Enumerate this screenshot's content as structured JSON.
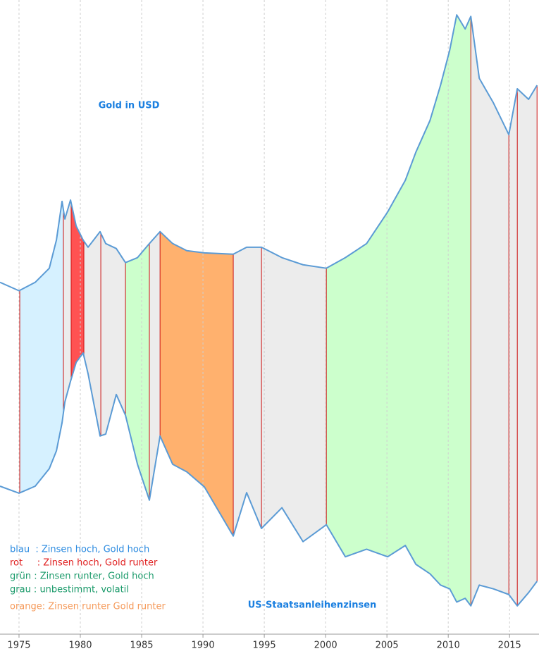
{
  "chart_data": {
    "type": "line",
    "x": [
      1973.45,
      1975.0,
      1976.32,
      1977.47,
      1978.05,
      1978.51,
      1978.74,
      1979.2,
      1979.66,
      1980.23,
      1980.63,
      1981.61,
      1982.07,
      1982.93,
      1983.68,
      1984.66,
      1985.63,
      1986.5,
      1987.53,
      1988.68,
      1990.12,
      1992.47,
      1993.56,
      1994.77,
      1996.44,
      1998.16,
      2000.06,
      2001.61,
      2003.34,
      2005.06,
      2006.5,
      2007.36,
      2008.51,
      2009.37,
      2010.12,
      2010.69,
      2011.38,
      2011.84,
      2012.53,
      2013.68,
      2014.94,
      2015.63,
      2016.55,
      2017.24
    ],
    "series": [
      {
        "name": "Gold in USD",
        "color": "#5b9bd5",
        "values": [
          185,
          134,
          185,
          270,
          440,
          674,
          567,
          682,
          525,
          440,
          397,
          491,
          419,
          389,
          304,
          334,
          419,
          491,
          419,
          376,
          363,
          355,
          397,
          397,
          334,
          291,
          270,
          334,
          419,
          610,
          801,
          971,
          1162,
          1375,
          1587,
          1800,
          1715,
          1791,
          1417,
          1269,
          1077,
          1354,
          1290,
          1375
        ]
      },
      {
        "name": "US-Staatsanleihenzinsen",
        "color": "#5b9bd5",
        "axis": "y2",
        "values": [
          7.84,
          7.47,
          7.84,
          8.77,
          9.71,
          11.2,
          12.3,
          13.4,
          14.4,
          14.9,
          13.8,
          10.5,
          10.6,
          12.7,
          11.6,
          9.0,
          7.1,
          10.5,
          9.0,
          8.6,
          7.8,
          5.2,
          7.5,
          5.6,
          6.7,
          4.9,
          5.8,
          4.1,
          4.5,
          4.1,
          4.7,
          3.7,
          3.2,
          2.6,
          2.4,
          1.7,
          1.9,
          1.5,
          2.6,
          2.4,
          2.1,
          1.5,
          2.2,
          2.8
        ]
      }
    ],
    "xlim": [
      1973.45,
      2017.4
    ],
    "xticks": [
      1975,
      1980,
      1985,
      1990,
      1995,
      2000,
      2005,
      2010,
      2015
    ],
    "ylim": [
      -1940,
      1890
    ],
    "y2lim": [
      0,
      33.6
    ],
    "grid": true,
    "regions": [
      {
        "start": 1975.06,
        "end": 1978.62,
        "color": "#d6f1ff"
      },
      {
        "start": 1978.62,
        "end": 1979.25,
        "color": "#ececec"
      },
      {
        "start": 1979.25,
        "end": 1980.29,
        "color": "#ff5252"
      },
      {
        "start": 1980.29,
        "end": 1981.67,
        "color": "#ececec"
      },
      {
        "start": 1981.67,
        "end": 1983.68,
        "color": "#ececec"
      },
      {
        "start": 1983.68,
        "end": 1985.63,
        "color": "#ccffcc"
      },
      {
        "start": 1985.63,
        "end": 1986.5,
        "color": "#ececec"
      },
      {
        "start": 1986.5,
        "end": 1992.47,
        "color": "#ffb16e"
      },
      {
        "start": 1992.47,
        "end": 1994.77,
        "color": "#ececec"
      },
      {
        "start": 1994.77,
        "end": 2000.06,
        "color": "#ececec"
      },
      {
        "start": 2000.06,
        "end": 2011.84,
        "color": "#ccffcc"
      },
      {
        "start": 2011.84,
        "end": 2014.94,
        "color": "#ececec"
      },
      {
        "start": 2014.94,
        "end": 2015.63,
        "color": "#ececec"
      },
      {
        "start": 2015.63,
        "end": 2017.24,
        "color": "#ececec"
      }
    ],
    "legend": [
      {
        "text": "blau  : Zinsen hoch, Gold hoch",
        "color": "#2a8ae0"
      },
      {
        "text": "rot     : Zinsen hoch, Gold runter",
        "color": "#e02020"
      },
      {
        "text": "grün : Zinsen runter, Gold hoch",
        "color": "#1a9a6a"
      },
      {
        "text": "grau : unbestimmt, volatil",
        "color": "#1a9a6a"
      },
      {
        "text": "orange: Zinsen runter Gold runter",
        "color": "#f59a5a"
      }
    ]
  }
}
